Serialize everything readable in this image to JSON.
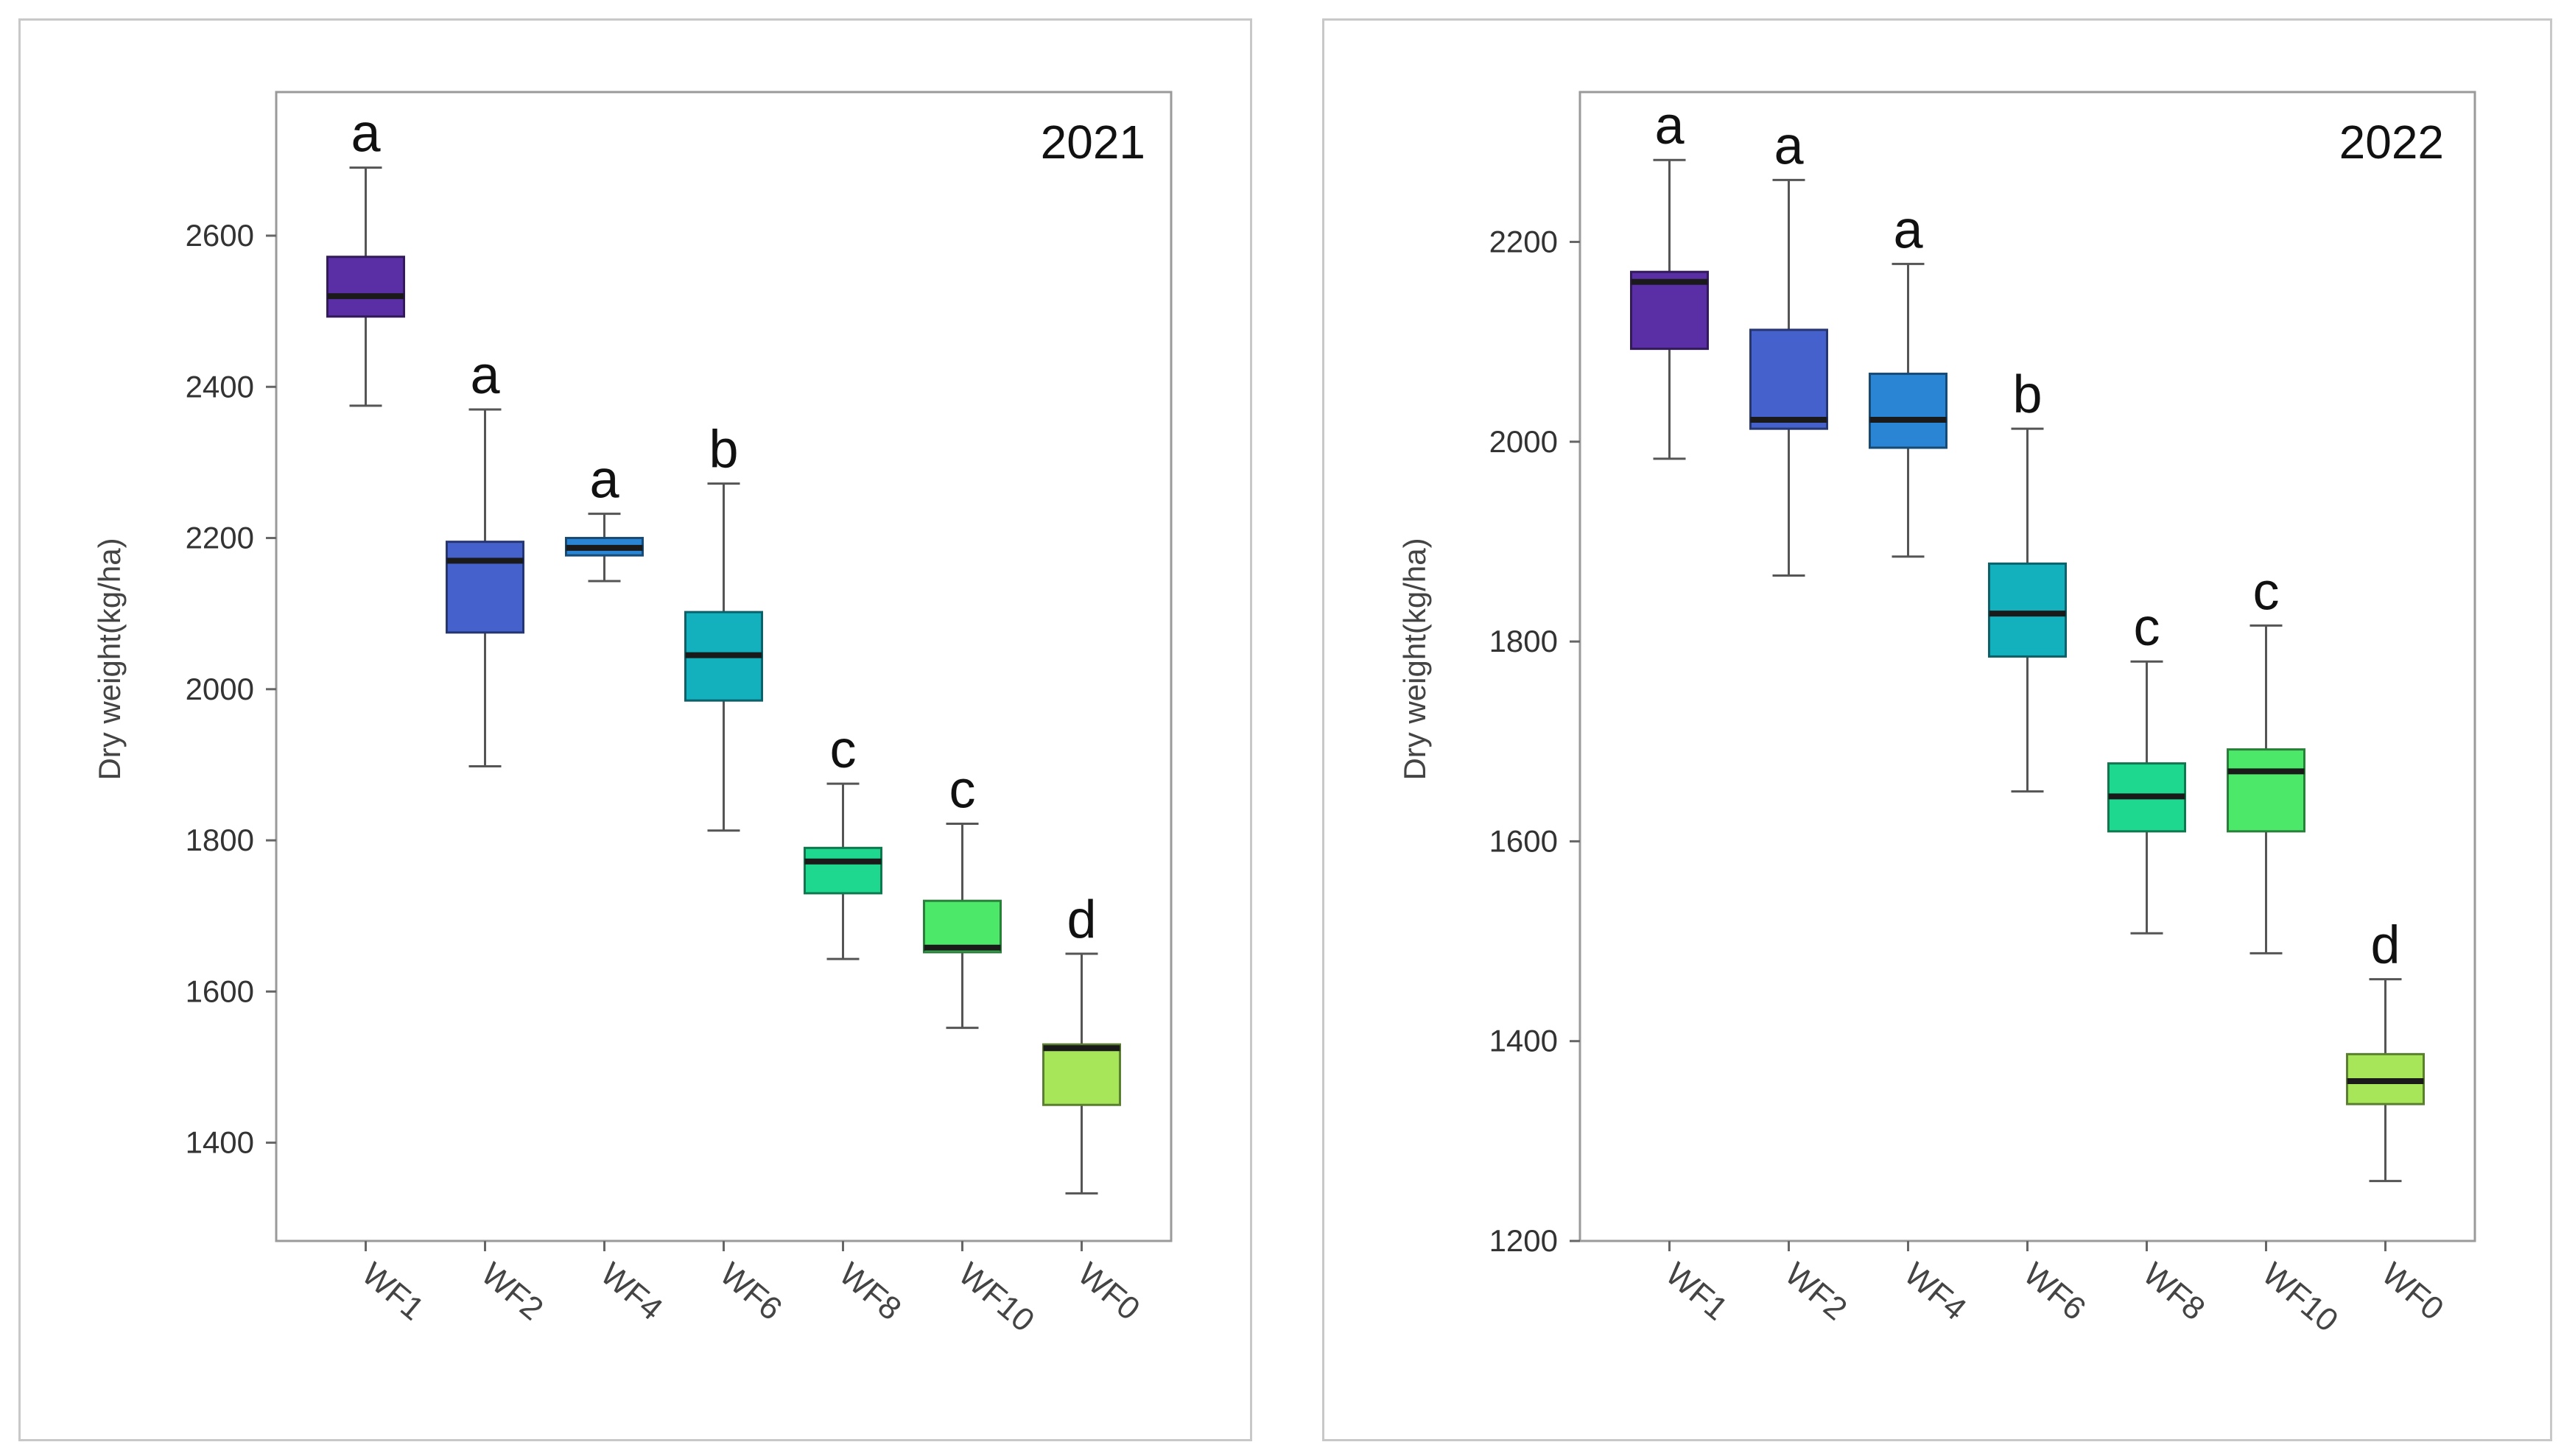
{
  "chart_data": [
    {
      "type": "box",
      "panel": "left",
      "title": "2021",
      "xlabel": "",
      "ylabel": "Dry weight(kg/ha)",
      "ylim": [
        1270,
        2790
      ],
      "yticks": [
        1400,
        1600,
        1800,
        2000,
        2200,
        2400,
        2600
      ],
      "categories": [
        "WF1",
        "WF2",
        "WF4",
        "WF6",
        "WF8",
        "WF10",
        "WF0"
      ],
      "boxes": [
        {
          "label": "WF1",
          "min": 2375,
          "q1": 2493,
          "median": 2520,
          "q3": 2572,
          "max": 2690,
          "letter": "a",
          "color": "#5a2fa6"
        },
        {
          "label": "WF2",
          "min": 1898,
          "q1": 2075,
          "median": 2170,
          "q3": 2195,
          "max": 2370,
          "letter": "a",
          "color": "#4562cc"
        },
        {
          "label": "WF4",
          "min": 2143,
          "q1": 2177,
          "median": 2187,
          "q3": 2200,
          "max": 2232,
          "letter": "a",
          "color": "#2a86d4"
        },
        {
          "label": "WF6",
          "min": 1813,
          "q1": 1985,
          "median": 2045,
          "q3": 2102,
          "max": 2272,
          "letter": "b",
          "color": "#13b0be"
        },
        {
          "label": "WF8",
          "min": 1643,
          "q1": 1730,
          "median": 1772,
          "q3": 1790,
          "max": 1875,
          "letter": "c",
          "color": "#1fd88f"
        },
        {
          "label": "WF10",
          "min": 1552,
          "q1": 1652,
          "median": 1658,
          "q3": 1720,
          "max": 1822,
          "letter": "c",
          "color": "#4ce86a"
        },
        {
          "label": "WF0",
          "min": 1333,
          "q1": 1450,
          "median": 1525,
          "q3": 1530,
          "max": 1650,
          "letter": "d",
          "color": "#a6e658"
        }
      ]
    },
    {
      "type": "box",
      "panel": "right",
      "title": "2022",
      "xlabel": "",
      "ylabel": "Dry weight(kg/ha)",
      "ylim": [
        1200,
        2350
      ],
      "yticks": [
        1200,
        1400,
        1600,
        1800,
        2000,
        2200
      ],
      "categories": [
        "WF1",
        "WF2",
        "WF4",
        "WF6",
        "WF8",
        "WF10",
        "WF0"
      ],
      "boxes": [
        {
          "label": "WF1",
          "min": 1983,
          "q1": 2093,
          "median": 2160,
          "q3": 2170,
          "max": 2282,
          "letter": "a",
          "color": "#5a2fa6"
        },
        {
          "label": "WF2",
          "min": 1866,
          "q1": 2013,
          "median": 2022,
          "q3": 2112,
          "max": 2262,
          "letter": "a",
          "color": "#4562cc"
        },
        {
          "label": "WF4",
          "min": 1885,
          "q1": 1994,
          "median": 2022,
          "q3": 2068,
          "max": 2178,
          "letter": "a",
          "color": "#2a86d4"
        },
        {
          "label": "WF6",
          "min": 1650,
          "q1": 1785,
          "median": 1828,
          "q3": 1878,
          "max": 2013,
          "letter": "b",
          "color": "#13b0be"
        },
        {
          "label": "WF8",
          "min": 1508,
          "q1": 1610,
          "median": 1645,
          "q3": 1678,
          "max": 1780,
          "letter": "c",
          "color": "#1fd88f"
        },
        {
          "label": "WF10",
          "min": 1488,
          "q1": 1610,
          "median": 1670,
          "q3": 1692,
          "max": 1816,
          "letter": "c",
          "color": "#4ce86a"
        },
        {
          "label": "WF0",
          "min": 1260,
          "q1": 1337,
          "median": 1360,
          "q3": 1387,
          "max": 1462,
          "letter": "d",
          "color": "#a6e658"
        }
      ]
    }
  ]
}
